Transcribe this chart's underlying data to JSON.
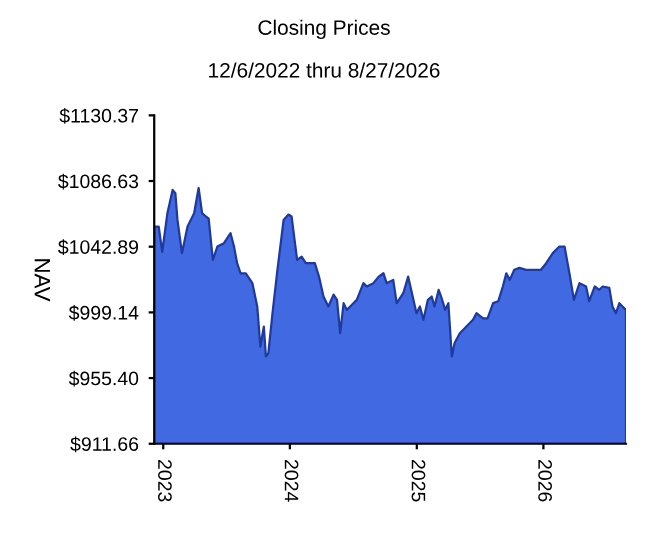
{
  "chart_data": {
    "type": "area",
    "title": "Closing Prices",
    "subtitle": "12/6/2022 thru 8/27/2026",
    "ylabel": "NAV",
    "x": [
      "2022-12-06",
      "2022-12-19",
      "2022-12-29",
      "2023-01-13",
      "2023-01-28",
      "2023-02-05",
      "2023-02-11",
      "2023-02-24",
      "2023-03-12",
      "2023-03-31",
      "2023-04-13",
      "2023-04-23",
      "2023-05-04",
      "2023-05-12",
      "2023-05-24",
      "2023-06-06",
      "2023-06-25",
      "2023-07-14",
      "2023-07-24",
      "2023-08-02",
      "2023-08-12",
      "2023-08-27",
      "2023-09-15",
      "2023-09-29",
      "2023-10-08",
      "2023-10-18",
      "2023-10-24",
      "2023-10-31",
      "2023-11-12",
      "2023-11-25",
      "2023-12-14",
      "2023-12-28",
      "2024-01-06",
      "2024-01-22",
      "2024-02-04",
      "2024-02-16",
      "2024-02-29",
      "2024-03-13",
      "2024-03-25",
      "2024-04-07",
      "2024-04-21",
      "2024-05-06",
      "2024-05-16",
      "2024-05-25",
      "2024-06-04",
      "2024-06-13",
      "2024-06-23",
      "2024-07-12",
      "2024-07-31",
      "2024-08-10",
      "2024-08-29",
      "2024-09-13",
      "2024-09-27",
      "2024-10-06",
      "2024-10-25",
      "2024-11-04",
      "2024-11-23",
      "2024-12-07",
      "2024-12-18",
      "2024-12-31",
      "2025-01-10",
      "2025-01-20",
      "2025-02-02",
      "2025-02-13",
      "2025-02-21",
      "2025-03-05",
      "2025-03-12",
      "2025-03-24",
      "2025-04-02",
      "2025-04-12",
      "2025-04-20",
      "2025-05-05",
      "2025-05-24",
      "2025-06-12",
      "2025-06-22",
      "2025-07-11",
      "2025-07-24",
      "2025-08-09",
      "2025-08-24",
      "2025-09-06",
      "2025-09-16",
      "2025-09-26",
      "2025-10-09",
      "2025-10-24",
      "2025-11-12",
      "2025-12-02",
      "2025-12-25",
      "2026-01-09",
      "2026-01-28",
      "2026-02-16",
      "2026-03-03",
      "2026-03-17",
      "2026-03-30",
      "2026-04-15",
      "2026-05-04",
      "2026-05-13",
      "2026-05-29",
      "2026-06-11",
      "2026-06-21",
      "2026-07-10",
      "2026-07-19",
      "2026-07-29",
      "2026-08-08",
      "2026-08-17",
      "2026-08-27"
    ],
    "series": [
      {
        "color": "#4169e1",
        "values": [
          1056.3,
          1056.3,
          1039.4,
          1065.2,
          1080.7,
          1078.5,
          1060.7,
          1038.6,
          1056.3,
          1065.2,
          1082.0,
          1065.2,
          1063.0,
          1061.6,
          1034.1,
          1043.0,
          1045.2,
          1051.9,
          1043.0,
          1031.9,
          1025.2,
          1025.2,
          1018.6,
          1003.1,
          976.4,
          989.7,
          969.8,
          972.0,
          998.6,
          1025.2,
          1060.7,
          1064.3,
          1063.0,
          1034.1,
          1036.3,
          1031.9,
          1031.9,
          1031.9,
          1023.0,
          1009.7,
          1003.1,
          1011.0,
          1007.5,
          985.3,
          1005.3,
          1000.8,
          1003.1,
          1007.5,
          1018.6,
          1016.4,
          1018.6,
          1023.0,
          1025.2,
          1018.6,
          1020.8,
          1005.3,
          1011.9,
          1023.0,
          1011.9,
          998.6,
          1003.1,
          994.2,
          1007.5,
          1009.7,
          1003.1,
          1014.2,
          1009.7,
          1000.8,
          1005.3,
          969.8,
          978.7,
          985.3,
          989.7,
          994.2,
          998.6,
          995.1,
          995.1,
          1005.3,
          1006.6,
          1016.4,
          1025.2,
          1020.8,
          1027.5,
          1028.8,
          1027.5,
          1027.5,
          1027.5,
          1031.9,
          1038.6,
          1043.0,
          1043.0,
          1025.2,
          1007.5,
          1018.6,
          1016.4,
          1006.6,
          1016.4,
          1014.2,
          1016.4,
          1015.5,
          1003.1,
          998.6,
          1005.3,
          1003.1,
          1000.8
        ]
      }
    ],
    "xlim": [
      "2022-12-06",
      "2026-08-27"
    ],
    "xticks": [
      {
        "value": "2023-01-01",
        "label": "2023"
      },
      {
        "value": "2024-01-01",
        "label": "2024"
      },
      {
        "value": "2025-01-01",
        "label": "2025"
      },
      {
        "value": "2026-01-01",
        "label": "2026"
      }
    ],
    "ylim": [
      911.66,
      1130.37
    ],
    "yticks": [
      {
        "value": 911.66,
        "label": "$911.66"
      },
      {
        "value": 955.4,
        "label": "$955.40"
      },
      {
        "value": 999.14,
        "label": "$999.14"
      },
      {
        "value": 1042.89,
        "label": "$1042.89"
      },
      {
        "value": 1086.63,
        "label": "$1086.63"
      },
      {
        "value": 1130.37,
        "label": "$1130.37"
      }
    ],
    "grid": false,
    "legend": false
  }
}
